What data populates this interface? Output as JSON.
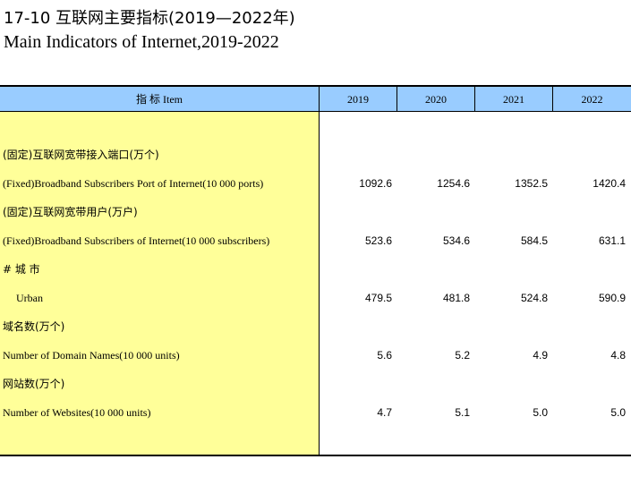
{
  "title": {
    "cn": "17-10   互联网主要指标(2019—2022年)",
    "en": "Main Indicators of Internet,2019-2022"
  },
  "table": {
    "header": {
      "item": "指   标     Item",
      "years": [
        "2019",
        "2020",
        "2021",
        "2022"
      ]
    },
    "rows": [
      {
        "label": "(固定)互联网宽带接入端口(万个)",
        "lang": "cn",
        "indent": false,
        "values": []
      },
      {
        "label": "(Fixed)Broadband Subscribers Port of Internet(10 000 ports)",
        "lang": "en",
        "indent": false,
        "values": [
          "1092.6",
          "1254.6",
          "1352.5",
          "1420.4"
        ]
      },
      {
        "label": "(固定)互联网宽带用户(万户)",
        "lang": "cn",
        "indent": false,
        "values": []
      },
      {
        "label": "(Fixed)Broadband Subscribers of Internet(10 000 subscribers)",
        "lang": "en",
        "indent": false,
        "values": [
          "523.6",
          "534.6",
          "584.5",
          "631.1"
        ]
      },
      {
        "label": "# 城  市",
        "lang": "cn",
        "indent": false,
        "values": []
      },
      {
        "label": "Urban",
        "lang": "en",
        "indent": true,
        "values": [
          "479.5",
          "481.8",
          "524.8",
          "590.9"
        ]
      },
      {
        "label": "域名数(万个)",
        "lang": "cn",
        "indent": false,
        "values": []
      },
      {
        "label": "Number of Domain Names(10 000 units)",
        "lang": "en",
        "indent": false,
        "values": [
          "5.6",
          "5.2",
          "4.9",
          "4.8"
        ]
      },
      {
        "label": "网站数(万个)",
        "lang": "cn",
        "indent": false,
        "values": []
      },
      {
        "label": "Number of Websites(10 000 units)",
        "lang": "en",
        "indent": false,
        "values": [
          "4.7",
          "5.1",
          "5.0",
          "5.0"
        ]
      }
    ]
  },
  "colors": {
    "header_bg": "#99ccff",
    "stub_bg": "#ffff99"
  }
}
